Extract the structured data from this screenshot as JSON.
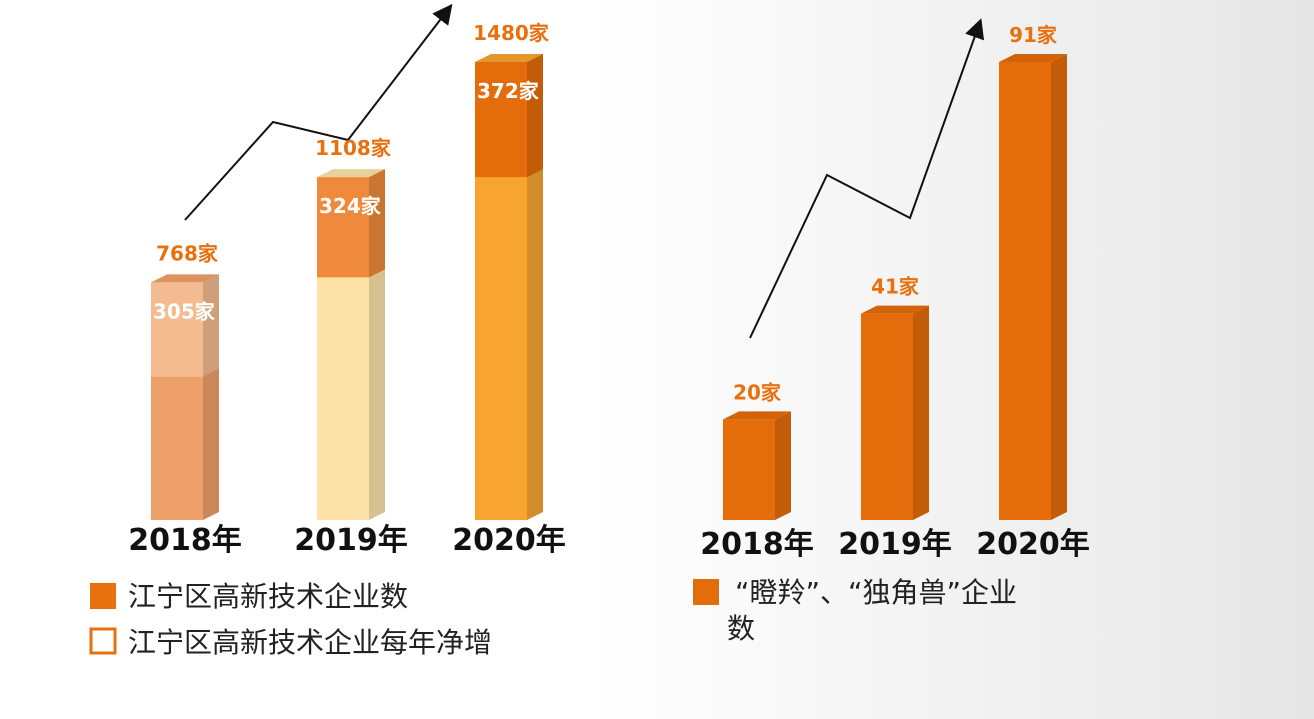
{
  "chart_data": [
    {
      "type": "bar3d-overlay",
      "categories": [
        "2018年",
        "2019年",
        "2020年"
      ],
      "series": [
        {
          "name": "江宁区高新技术企业数",
          "values": [
            768,
            1108,
            1480
          ],
          "value_labels": [
            "768家",
            "1108家",
            "1480家"
          ],
          "colors": [
            "#eea06a",
            "#fde3a8",
            "#f7a530"
          ]
        },
        {
          "name": "江宁区高新技术企业每年净增",
          "values": [
            305,
            324,
            372
          ],
          "value_labels": [
            "305家",
            "324家",
            "372家"
          ],
          "colors": [
            "#f3bb8f",
            "#ef8a3c",
            "#e46c0a"
          ]
        }
      ],
      "legend_color": "#e8700f"
    },
    {
      "type": "bar3d",
      "categories": [
        "2018年",
        "2019年",
        "2020年"
      ],
      "series": [
        {
          "name": "“瞪羚”、“独角兽”企业数",
          "values": [
            20,
            41,
            91
          ],
          "value_labels": [
            "20家",
            "41家",
            "91家"
          ],
          "color": "#e46c0a"
        }
      ]
    }
  ]
}
